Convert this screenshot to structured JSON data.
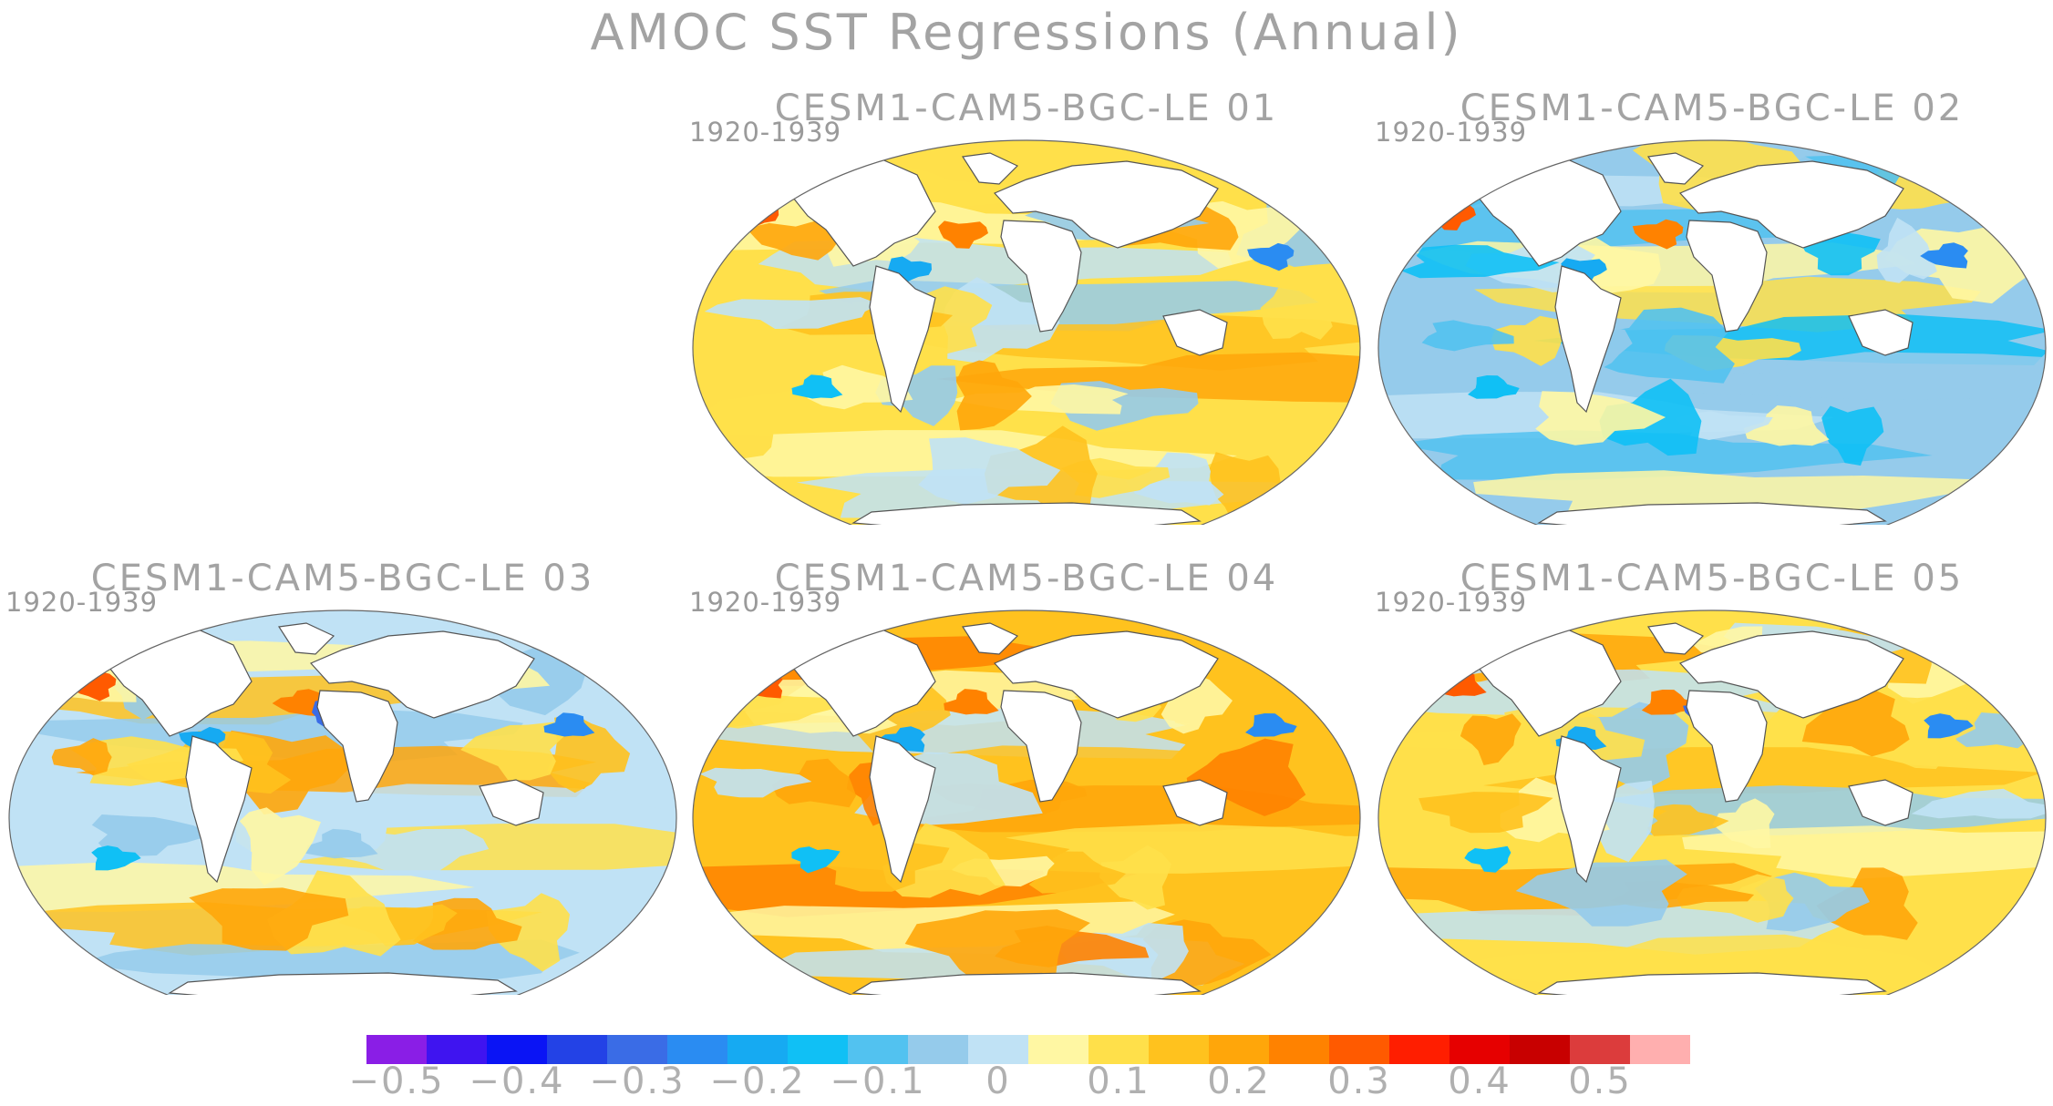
{
  "title": "AMOC SST Regressions (Annual)",
  "panels": [
    {
      "title": "CESM1-CAM5-BGC-LE 01",
      "period": "1920-1939"
    },
    {
      "title": "CESM1-CAM5-BGC-LE 02",
      "period": "1920-1939"
    },
    {
      "title": "CESM1-CAM5-BGC-LE 03",
      "period": "1920-1939"
    },
    {
      "title": "CESM1-CAM5-BGC-LE 04",
      "period": "1920-1939"
    },
    {
      "title": "CESM1-CAM5-BGC-LE 05",
      "period": "1920-1939"
    }
  ],
  "colorbar": {
    "colors": [
      "#8a1ee6",
      "#3f14f0",
      "#0a14f5",
      "#2342e6",
      "#3a6ce6",
      "#2a8cf2",
      "#16aaf2",
      "#10c0f5",
      "#52c2f0",
      "#95cbeb",
      "#c0e2f5",
      "#fff7a3",
      "#ffe04a",
      "#ffc21e",
      "#ffa60a",
      "#ff8200",
      "#ff5a00",
      "#ff1e00",
      "#e60000",
      "#c80000",
      "#dc3c3c",
      "#ffafaf"
    ],
    "tick_labels": [
      "−0.5",
      "−0.4",
      "−0.3",
      "−0.2",
      "−0.1",
      "0",
      "0.1",
      "0.2",
      "0.3",
      "0.4",
      "0.5"
    ]
  }
}
